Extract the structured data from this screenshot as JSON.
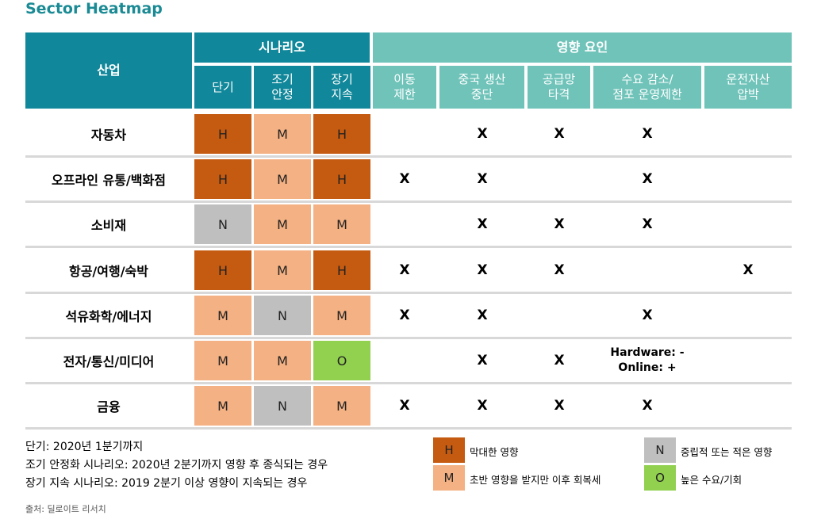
{
  "title": "Sector Heatmap",
  "header": {
    "industry": "산업",
    "scenario_group": "시나리오",
    "factors_group": "영향 요인",
    "scenarios": [
      {
        "line1": "단기",
        "line2": ""
      },
      {
        "line1": "조기",
        "line2": "안정"
      },
      {
        "line1": "장기",
        "line2": "지속"
      }
    ],
    "factors": [
      {
        "line1": "이동",
        "line2": "제한"
      },
      {
        "line1": "중국 생산",
        "line2": "중단"
      },
      {
        "line1": "공급망",
        "line2": "타격"
      },
      {
        "line1": "수요 감소/",
        "line2": "점포 운영제한"
      },
      {
        "line1": "운전자산",
        "line2": "압박"
      }
    ]
  },
  "rows": [
    {
      "name": "자동차",
      "levels": [
        "H",
        "M",
        "H"
      ],
      "factors": [
        "",
        "X",
        "X",
        "X",
        ""
      ]
    },
    {
      "name": "오프라인 유통/백화점",
      "levels": [
        "H",
        "M",
        "H"
      ],
      "factors": [
        "X",
        "X",
        "",
        "X",
        ""
      ]
    },
    {
      "name": "소비재",
      "levels": [
        "N",
        "M",
        "M"
      ],
      "factors": [
        "",
        "X",
        "X",
        "X",
        ""
      ]
    },
    {
      "name": "항공/여행/숙박",
      "levels": [
        "H",
        "M",
        "H"
      ],
      "factors": [
        "X",
        "X",
        "X",
        "",
        "X"
      ]
    },
    {
      "name": "석유화학/에너지",
      "levels": [
        "M",
        "N",
        "M"
      ],
      "factors": [
        "X",
        "X",
        "",
        "X",
        ""
      ]
    },
    {
      "name": "전자/통신/미디어",
      "levels": [
        "M",
        "M",
        "O"
      ],
      "factors": [
        "",
        "X",
        "X",
        "Hardware: -|Online: +",
        ""
      ]
    },
    {
      "name": "금융",
      "levels": [
        "M",
        "N",
        "M"
      ],
      "factors": [
        "X",
        "X",
        "X",
        "X",
        ""
      ]
    }
  ],
  "notes": [
    "단기: 2020년 1분기까지",
    "조기 안정화 시나리오: 2020년 2분기까지 영향 후 종식되는 경우",
    "장기 지속 시나리오: 2019 2분기 이상 영향이 지속되는 경우"
  ],
  "legend": [
    {
      "code": "H",
      "label": "막대한 영향",
      "color": "#c55a11"
    },
    {
      "code": "M",
      "label": "초반 영향을 받지만 이후 회복세",
      "color": "#f4b183"
    },
    {
      "code": "N",
      "label": "중립적 또는 적은 영향",
      "color": "#bfbfbf"
    },
    {
      "code": "O",
      "label": "높은 수요/기회",
      "color": "#92d050"
    }
  ],
  "source": "출처: 딜로이트 리서치",
  "colors": {
    "header_main": "#10879a",
    "header_secondary": "#6fc3b9",
    "title": "#1a8a94"
  }
}
